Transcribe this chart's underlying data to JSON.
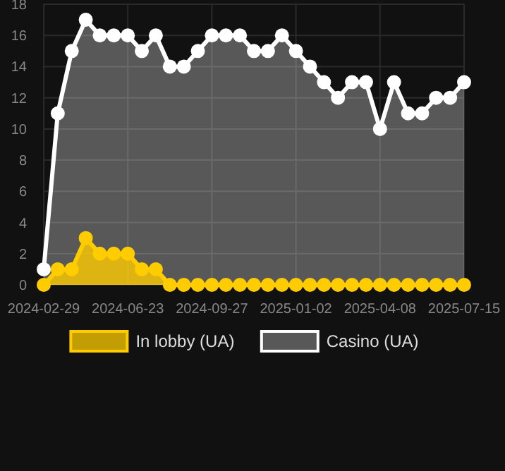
{
  "chart_data": {
    "type": "area",
    "categories": [
      "2024-02-29",
      null,
      null,
      null,
      null,
      null,
      "2024-06-23",
      null,
      null,
      null,
      null,
      null,
      "2024-09-27",
      null,
      null,
      null,
      null,
      null,
      "2025-01-02",
      null,
      null,
      null,
      null,
      null,
      "2025-04-08",
      null,
      null,
      null,
      null,
      null,
      "2025-07-15"
    ],
    "series": [
      {
        "name": "In lobby (UA)",
        "color": "#ffcc00",
        "values": [
          0,
          1,
          1,
          3,
          2,
          2,
          2,
          1,
          1,
          0,
          0,
          0,
          0,
          0,
          0,
          0,
          0,
          0,
          0,
          0,
          0,
          0,
          0,
          0,
          0,
          0,
          0,
          0,
          0,
          0,
          0
        ]
      },
      {
        "name": "Casino (UA)",
        "color": "#ffffff",
        "values": [
          1,
          11,
          15,
          17,
          16,
          16,
          16,
          15,
          16,
          14,
          14,
          15,
          16,
          16,
          16,
          15,
          15,
          16,
          15,
          14,
          13,
          12,
          13,
          13,
          10,
          13,
          11,
          11,
          12,
          12,
          13
        ]
      }
    ],
    "ylim": [
      0,
      18
    ],
    "yticks": [
      0,
      2,
      4,
      6,
      8,
      10,
      12,
      14,
      16,
      18
    ],
    "grid": true,
    "legend": "bottom",
    "marker": "circle",
    "line_style": "solid"
  }
}
